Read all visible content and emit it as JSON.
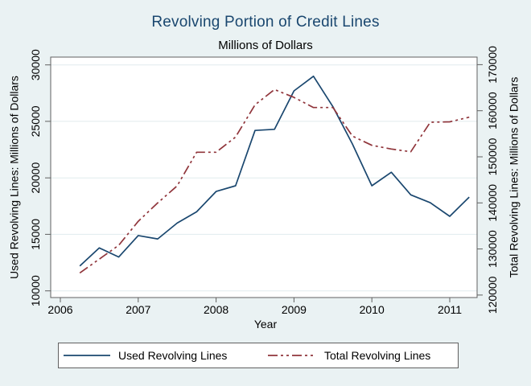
{
  "header": {
    "title": "Revolving Portion of Credit Lines",
    "subtitle": "Millions of Dollars"
  },
  "chart_data": {
    "type": "line",
    "xlabel": "Year",
    "x": [
      2006.25,
      2006.5,
      2006.75,
      2007.0,
      2007.25,
      2007.5,
      2007.75,
      2008.0,
      2008.25,
      2008.5,
      2008.75,
      2009.0,
      2009.25,
      2009.5,
      2009.75,
      2010.0,
      2010.25,
      2010.5,
      2010.75,
      2011.0,
      2011.25
    ],
    "x_ticks": [
      2006,
      2007,
      2008,
      2009,
      2010,
      2011
    ],
    "x_tick_labels": [
      "2006",
      "2007",
      "2008",
      "2009",
      "2010",
      "2011"
    ],
    "left_axis": {
      "title": "Used Revolving Lines: Millions of Dollars",
      "ticks": [
        10000,
        15000,
        20000,
        25000,
        30000
      ],
      "tick_labels": [
        "10000",
        "15000",
        "20000",
        "25000",
        "30000"
      ],
      "range": [
        9400,
        30750
      ]
    },
    "right_axis": {
      "title": "Total Revolving Lines: Millions of Dollars",
      "ticks": [
        120000,
        130000,
        140000,
        150000,
        160000,
        170000
      ],
      "tick_labels": [
        "120000",
        "130000",
        "140000",
        "150000",
        "160000",
        "170000"
      ],
      "range": [
        119500,
        171500
      ]
    },
    "grid": true,
    "legend_position": "bottom",
    "series": [
      {
        "name": "Used Revolving Lines",
        "axis": "left",
        "color": "#1a476f",
        "style": "solid",
        "values": [
          12200,
          13800,
          13000,
          14900,
          14600,
          16000,
          17000,
          18800,
          19300,
          24200,
          24300,
          27700,
          29000,
          26300,
          23000,
          19300,
          20500,
          18500,
          17800,
          16600,
          18300
        ]
      },
      {
        "name": "Total Revolving Lines",
        "axis": "right",
        "color": "#90353b",
        "style": "dash-dot",
        "values": [
          124800,
          127800,
          130800,
          136000,
          140000,
          143700,
          151000,
          151000,
          154300,
          161300,
          164600,
          162900,
          160700,
          160700,
          154500,
          152500,
          151700,
          151100,
          157500,
          157600,
          158600
        ]
      }
    ]
  },
  "colors": {
    "background": "#eaf2f3",
    "plot_background": "#ffffff",
    "grid": "#e1ebee",
    "axis": "#606060",
    "text": "#000000",
    "title": "#1a476f"
  }
}
